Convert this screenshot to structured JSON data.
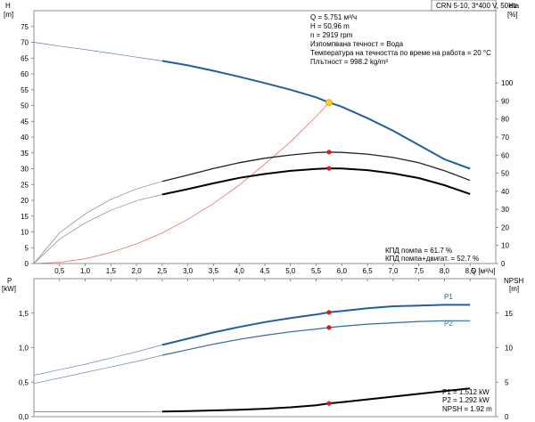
{
  "chart_data": [
    {
      "type": "line",
      "title_box": "CRN 5-10, 3*400 V, 50Hz",
      "ylabel_left": "H",
      "ylabel_left_unit": "[m]",
      "ylabel_right": "eta",
      "ylabel_right_unit": "[%]",
      "xlabel": "Q [м³/ч]",
      "xlim": [
        0,
        9.0
      ],
      "ylim_left": [
        0,
        80
      ],
      "ylim_right": [
        0,
        140
      ],
      "x_ticks": [
        "0,5",
        "1,0",
        "1,5",
        "2,0",
        "2,5",
        "3,0",
        "3,5",
        "4,0",
        "4,5",
        "5,0",
        "5,5",
        "6,0",
        "6,5",
        "7,0",
        "7,5",
        "8,0",
        "8,5"
      ],
      "y_ticks_left": [
        "0",
        "5",
        "10",
        "15",
        "20",
        "25",
        "30",
        "35",
        "40",
        "45",
        "50",
        "55",
        "60",
        "65",
        "70",
        "75"
      ],
      "y_ticks_right": [
        "0",
        "10",
        "20",
        "30",
        "40",
        "50",
        "60",
        "70",
        "80",
        "90",
        "100"
      ],
      "info": [
        "Q = 5.751 м³/ч",
        "H = 50.96 m",
        "n = 2919 rpm",
        "Изпомпвана течност = Вода",
        "Температура на течността по време на работа = 20 °C",
        "Плътност = 998.2 kg/m³"
      ],
      "efficiency_labels": [
        "КПД помпа = 61.7 %",
        "КПД помпа+двигат. = 52.7 %"
      ],
      "series": [
        {
          "key": "head",
          "axis": "left",
          "x": [
            0,
            0.5,
            1,
            1.5,
            2,
            2.5,
            3,
            3.5,
            4,
            4.5,
            5,
            5.5,
            5.751,
            6,
            6.5,
            7,
            7.5,
            8,
            8.5
          ],
          "y": [
            70,
            68.8,
            67.7,
            66.5,
            65.3,
            64.1,
            62.7,
            61.0,
            59.1,
            57.1,
            55.0,
            52.6,
            50.96,
            49.6,
            46.0,
            42.0,
            37.5,
            33.0,
            30.0
          ]
        },
        {
          "key": "system",
          "axis": "left",
          "x": [
            0,
            0.5,
            1,
            1.5,
            2,
            2.5,
            3,
            3.5,
            4,
            4.5,
            5,
            5.5,
            5.751
          ],
          "y": [
            0,
            0.4,
            1.5,
            3.5,
            6.2,
            9.7,
            14.0,
            19.0,
            24.8,
            31.5,
            38.5,
            46.5,
            50.96
          ]
        },
        {
          "key": "eta_pump",
          "axis": "right",
          "x": [
            0,
            0.5,
            1,
            1.5,
            2,
            2.5,
            3,
            3.5,
            4,
            4.5,
            5,
            5.5,
            5.751,
            6,
            6.5,
            7,
            7.5,
            8,
            8.5
          ],
          "y": [
            0,
            17,
            27.5,
            35.5,
            41.3,
            45.5,
            49.0,
            52.6,
            55.8,
            58.3,
            60.1,
            61.4,
            61.7,
            61.5,
            60.6,
            58.7,
            55.8,
            51.4,
            46.0
          ]
        },
        {
          "key": "eta_total",
          "axis": "right",
          "x": [
            0,
            0.5,
            1,
            1.5,
            2,
            2.5,
            3,
            3.5,
            4,
            4.5,
            5,
            5.5,
            5.751,
            6,
            6.5,
            7,
            7.5,
            8,
            8.5
          ],
          "y": [
            0,
            13.5,
            22.5,
            29.5,
            34.8,
            38.2,
            41.2,
            44.4,
            47.4,
            49.6,
            51.3,
            52.4,
            52.7,
            52.6,
            51.7,
            49.9,
            47.3,
            43.4,
            38.5
          ]
        }
      ],
      "operating_point": {
        "x": 5.751,
        "head": 50.96,
        "eta_pump": 61.7,
        "eta_total": 52.7
      }
    },
    {
      "type": "line",
      "ylabel_left": "P",
      "ylabel_left_unit": "[kW]",
      "ylabel_right": "NPSH",
      "ylabel_right_unit": "[m]",
      "xlim": [
        0,
        9.0
      ],
      "ylim_left": [
        0,
        2.0
      ],
      "ylim_right": [
        0,
        20
      ],
      "y_ticks_left": [
        "0,0",
        "0,5",
        "1,0",
        "1,5"
      ],
      "y_ticks_right": [
        "0",
        "5",
        "10",
        "15"
      ],
      "series": [
        {
          "key": "P1",
          "name": "P1",
          "axis": "left",
          "x": [
            0,
            0.5,
            1,
            1.5,
            2,
            2.5,
            3,
            3.5,
            4,
            4.5,
            5,
            5.5,
            5.751,
            6,
            6.5,
            7,
            7.5,
            8,
            8.5
          ],
          "y": [
            0.6,
            0.68,
            0.76,
            0.85,
            0.94,
            1.04,
            1.13,
            1.22,
            1.3,
            1.37,
            1.43,
            1.48,
            1.512,
            1.53,
            1.57,
            1.6,
            1.61,
            1.62,
            1.62
          ]
        },
        {
          "key": "P2",
          "name": "P2",
          "axis": "left",
          "x": [
            0,
            0.5,
            1,
            1.5,
            2,
            2.5,
            3,
            3.5,
            4,
            4.5,
            5,
            5.5,
            5.751,
            6,
            6.5,
            7,
            7.5,
            8,
            8.5
          ],
          "y": [
            0.48,
            0.56,
            0.64,
            0.72,
            0.8,
            0.89,
            0.97,
            1.05,
            1.12,
            1.18,
            1.23,
            1.27,
            1.292,
            1.31,
            1.34,
            1.36,
            1.38,
            1.39,
            1.39
          ]
        },
        {
          "key": "npsh",
          "axis": "right",
          "x": [
            0,
            0.5,
            1,
            1.5,
            2,
            2.5,
            3,
            3.5,
            4,
            4.5,
            5,
            5.5,
            5.751,
            6,
            6.5,
            7,
            7.5,
            8,
            8.5
          ],
          "y": [
            0.7,
            0.7,
            0.7,
            0.7,
            0.7,
            0.75,
            0.8,
            0.9,
            1.0,
            1.15,
            1.35,
            1.65,
            1.92,
            2.1,
            2.5,
            2.9,
            3.3,
            3.7,
            4.1
          ]
        }
      ],
      "operating_point": {
        "x": 5.751,
        "P1": 1.512,
        "P2": 1.292,
        "npsh": 1.92
      },
      "readouts": [
        "P1 = 1.512 kW",
        "P2 = 1.292 kW",
        "NPSH = 1.92 m"
      ]
    }
  ]
}
